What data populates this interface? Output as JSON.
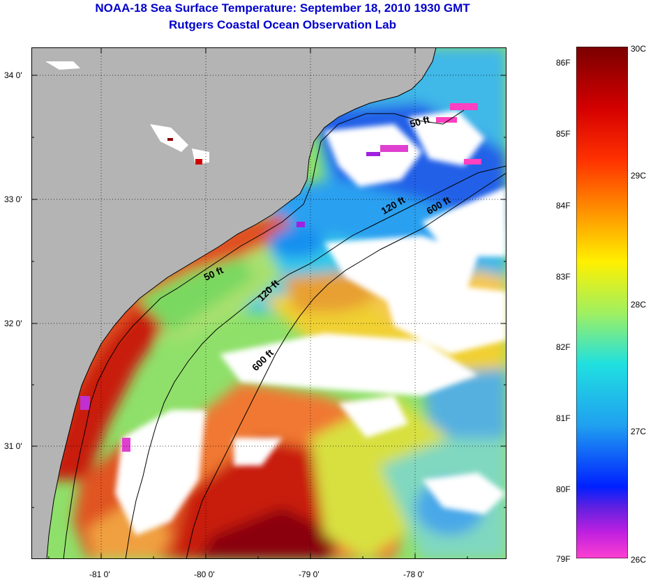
{
  "title": "NOAA-18 Sea Surface Temperature:  September 18, 2010 1930 GMT",
  "subtitle": "Rutgers Coastal Ocean Observation Lab",
  "lat_labels": [
    "34 0'",
    "33 0'",
    "32 0'",
    "31 0'"
  ],
  "lon_labels": [
    "-81 0'",
    "-80 0'",
    "-79 0'",
    "-78 0'"
  ],
  "contour_labels": {
    "c50a": "50 ft",
    "c50b": "50 ft",
    "c120a": "120 ft",
    "c120b": "120 ft",
    "c600a": "600 ft",
    "c600b": "600 ft"
  },
  "colorbar": {
    "fahrenheit": [
      "86F",
      "85F",
      "84F",
      "83F",
      "82F",
      "81F",
      "80F",
      "79F"
    ],
    "celsius": [
      "30C",
      "29C",
      "28C",
      "27C",
      "26C"
    ]
  },
  "colors": {
    "land": "#b4b4b4",
    "cloud": "#ffffff",
    "title": "#0000cc"
  }
}
